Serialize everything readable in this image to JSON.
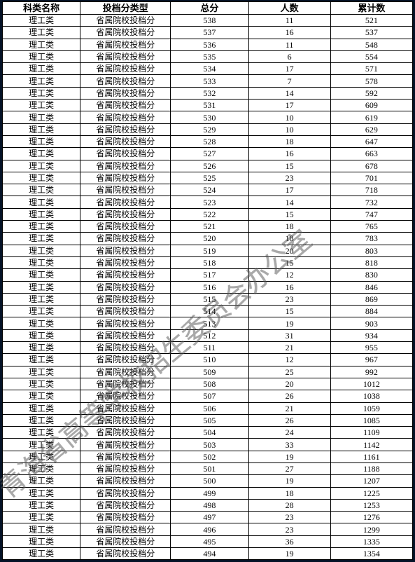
{
  "table": {
    "headers": [
      "科类名称",
      "投档分类型",
      "总分",
      "人数",
      "累计数"
    ],
    "category": "理工类",
    "type_label": "省属院校投档分",
    "rows": [
      {
        "score": 538,
        "count": 11,
        "cum": 521
      },
      {
        "score": 537,
        "count": 16,
        "cum": 537
      },
      {
        "score": 536,
        "count": 11,
        "cum": 548
      },
      {
        "score": 535,
        "count": 6,
        "cum": 554
      },
      {
        "score": 534,
        "count": 17,
        "cum": 571
      },
      {
        "score": 533,
        "count": 7,
        "cum": 578
      },
      {
        "score": 532,
        "count": 14,
        "cum": 592
      },
      {
        "score": 531,
        "count": 17,
        "cum": 609
      },
      {
        "score": 530,
        "count": 10,
        "cum": 619
      },
      {
        "score": 529,
        "count": 10,
        "cum": 629
      },
      {
        "score": 528,
        "count": 18,
        "cum": 647
      },
      {
        "score": 527,
        "count": 16,
        "cum": 663
      },
      {
        "score": 526,
        "count": 15,
        "cum": 678
      },
      {
        "score": 525,
        "count": 23,
        "cum": 701
      },
      {
        "score": 524,
        "count": 17,
        "cum": 718
      },
      {
        "score": 523,
        "count": 14,
        "cum": 732
      },
      {
        "score": 522,
        "count": 15,
        "cum": 747
      },
      {
        "score": 521,
        "count": 18,
        "cum": 765
      },
      {
        "score": 520,
        "count": 18,
        "cum": 783
      },
      {
        "score": 519,
        "count": 20,
        "cum": 803
      },
      {
        "score": 518,
        "count": 15,
        "cum": 818
      },
      {
        "score": 517,
        "count": 12,
        "cum": 830
      },
      {
        "score": 516,
        "count": 16,
        "cum": 846
      },
      {
        "score": 515,
        "count": 23,
        "cum": 869
      },
      {
        "score": 514,
        "count": 15,
        "cum": 884
      },
      {
        "score": 513,
        "count": 19,
        "cum": 903
      },
      {
        "score": 512,
        "count": 31,
        "cum": 934
      },
      {
        "score": 511,
        "count": 21,
        "cum": 955
      },
      {
        "score": 510,
        "count": 12,
        "cum": 967
      },
      {
        "score": 509,
        "count": 25,
        "cum": 992
      },
      {
        "score": 508,
        "count": 20,
        "cum": 1012
      },
      {
        "score": 507,
        "count": 26,
        "cum": 1038
      },
      {
        "score": 506,
        "count": 21,
        "cum": 1059
      },
      {
        "score": 505,
        "count": 26,
        "cum": 1085
      },
      {
        "score": 504,
        "count": 24,
        "cum": 1109
      },
      {
        "score": 503,
        "count": 33,
        "cum": 1142
      },
      {
        "score": 502,
        "count": 19,
        "cum": 1161
      },
      {
        "score": 501,
        "count": 27,
        "cum": 1188
      },
      {
        "score": 500,
        "count": 19,
        "cum": 1207
      },
      {
        "score": 499,
        "count": 18,
        "cum": 1225
      },
      {
        "score": 498,
        "count": 28,
        "cum": 1253
      },
      {
        "score": 497,
        "count": 23,
        "cum": 1276
      },
      {
        "score": 496,
        "count": 23,
        "cum": 1299
      },
      {
        "score": 495,
        "count": 36,
        "cum": 1335
      },
      {
        "score": 494,
        "count": 19,
        "cum": 1354
      }
    ]
  },
  "watermark": {
    "text": "青海省高等学校招生委员会办公室",
    "color": "#555555",
    "opacity": 0.5,
    "font_size": 38,
    "angle_deg": -40
  },
  "style": {
    "background": "#041226",
    "cell_bg": "#ffffff",
    "border_color": "#000000",
    "text_color": "#000000",
    "header_fontsize": 13,
    "cell_fontsize": 12,
    "col_widths_pct": [
      19,
      22,
      19,
      20,
      20
    ]
  }
}
